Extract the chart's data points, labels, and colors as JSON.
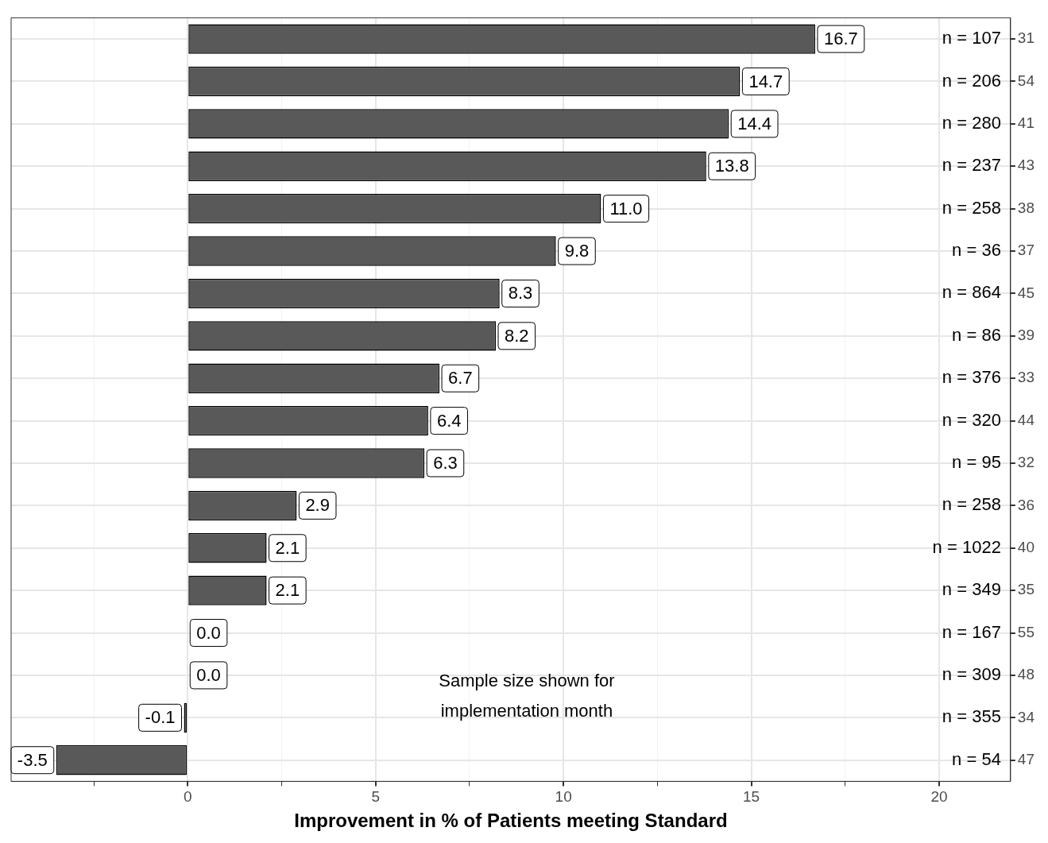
{
  "chart_data": {
    "type": "bar",
    "orientation": "horizontal",
    "xlabel": "Improvement in % of Patients meeting Standard",
    "categories": [
      "31",
      "54",
      "41",
      "43",
      "38",
      "37",
      "45",
      "39",
      "33",
      "44",
      "32",
      "36",
      "40",
      "35",
      "55",
      "48",
      "34",
      "47"
    ],
    "values": [
      16.7,
      14.7,
      14.4,
      13.8,
      11.0,
      9.8,
      8.3,
      8.2,
      6.7,
      6.4,
      6.3,
      2.9,
      2.1,
      2.1,
      0.0,
      0.0,
      -0.1,
      -3.5
    ],
    "color": "#595959",
    "value_labels": [
      "16.7",
      "14.7",
      "14.4",
      "13.8",
      "11.0",
      "9.8",
      "8.3",
      "8.2",
      "6.7",
      "6.4",
      "6.3",
      "2.9",
      "2.1",
      "2.1",
      "0.0",
      "0.0",
      "-0.1",
      "-3.5"
    ],
    "xlim": [
      -4.7,
      21.9
    ],
    "xticks": [
      {
        "value": -2.5,
        "label": null
      },
      0,
      {
        "value": 2.5,
        "label": null
      },
      5,
      {
        "value": 7.5,
        "label": null
      },
      10,
      {
        "value": 12.5,
        "label": null
      },
      15,
      {
        "value": 17.5,
        "label": null
      },
      20
    ],
    "grid": true,
    "annotations": [
      "n = 107",
      "n = 206",
      "n = 280",
      "n = 237",
      "n = 258",
      "n = 36",
      "n = 864",
      "n = 86",
      "n = 376",
      "n = 320",
      "n = 95",
      "n = 258",
      "n = 1022",
      "n = 349",
      "n = 167",
      "n = 309",
      "n = 355",
      "n = 54",
      "Sample size shown for\nimplementation month"
    ]
  }
}
